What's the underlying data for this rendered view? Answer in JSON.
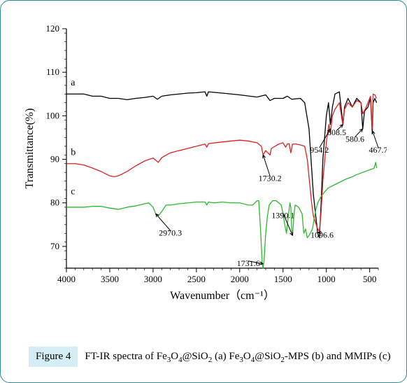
{
  "chart": {
    "type": "line",
    "background_color": "#ffffff",
    "axis_color": "#000000",
    "axis_width": 1.2,
    "font_family": "Times New Roman",
    "xlabel": "Wavenumber（cm⁻¹）",
    "ylabel": "Transmittance(%)",
    "label_fontsize": 16,
    "tick_fontsize": 13,
    "xlim": [
      4000,
      400
    ],
    "ylim": [
      65,
      120
    ],
    "xticks": [
      4000,
      3500,
      3000,
      2500,
      2000,
      1500,
      1000,
      500
    ],
    "yticks": [
      70,
      80,
      90,
      100,
      110,
      120
    ],
    "xtick_minor_step": 100,
    "ytick_minor_step": 2,
    "series": [
      {
        "key": "a",
        "label_letter": "a",
        "color": "#000000",
        "line_width": 1.3,
        "letter_xy": [
          3950,
          107
        ],
        "points": [
          [
            4000,
            105
          ],
          [
            3900,
            105
          ],
          [
            3800,
            105
          ],
          [
            3700,
            104.5
          ],
          [
            3600,
            104.5
          ],
          [
            3500,
            104
          ],
          [
            3400,
            104
          ],
          [
            3300,
            103.7
          ],
          [
            3200,
            104
          ],
          [
            3100,
            104.2
          ],
          [
            3000,
            104.5
          ],
          [
            2950,
            103.8
          ],
          [
            2900,
            104.5
          ],
          [
            2800,
            104.8
          ],
          [
            2700,
            105
          ],
          [
            2600,
            105.2
          ],
          [
            2500,
            105.3
          ],
          [
            2400,
            105.5
          ],
          [
            2380,
            104.5
          ],
          [
            2360,
            105.5
          ],
          [
            2200,
            105.2
          ],
          [
            2000,
            104.8
          ],
          [
            1800,
            104.3
          ],
          [
            1700,
            104.8
          ],
          [
            1650,
            103.5
          ],
          [
            1600,
            104
          ],
          [
            1500,
            104
          ],
          [
            1450,
            104.5
          ],
          [
            1400,
            103.8
          ],
          [
            1300,
            104
          ],
          [
            1250,
            103
          ],
          [
            1200,
            97
          ],
          [
            1150,
            82
          ],
          [
            1100,
            73
          ],
          [
            1080,
            72
          ],
          [
            1060,
            80
          ],
          [
            1040,
            90
          ],
          [
            1000,
            100
          ],
          [
            975,
            103
          ],
          [
            954,
            98
          ],
          [
            930,
            102
          ],
          [
            900,
            105
          ],
          [
            850,
            105.5
          ],
          [
            808,
            98
          ],
          [
            790,
            102
          ],
          [
            750,
            104
          ],
          [
            700,
            102
          ],
          [
            650,
            104
          ],
          [
            600,
            103
          ],
          [
            580,
            97
          ],
          [
            560,
            101
          ],
          [
            520,
            102
          ],
          [
            490,
            104
          ],
          [
            470,
            96
          ],
          [
            460,
            103
          ],
          [
            440,
            104
          ],
          [
            420,
            103
          ]
        ]
      },
      {
        "key": "b",
        "label_letter": "b",
        "color": "#e02020",
        "line_width": 1.3,
        "letter_xy": [
          3950,
          91
        ],
        "points": [
          [
            4000,
            89
          ],
          [
            3900,
            89
          ],
          [
            3800,
            88.7
          ],
          [
            3700,
            88
          ],
          [
            3600,
            87.2
          ],
          [
            3500,
            86.2
          ],
          [
            3450,
            86
          ],
          [
            3400,
            86.2
          ],
          [
            3300,
            87.2
          ],
          [
            3200,
            88.5
          ],
          [
            3100,
            89.6
          ],
          [
            3000,
            90.3
          ],
          [
            2970,
            89.8
          ],
          [
            2940,
            89.3
          ],
          [
            2900,
            90.4
          ],
          [
            2800,
            91.5
          ],
          [
            2700,
            92
          ],
          [
            2600,
            92.5
          ],
          [
            2500,
            93
          ],
          [
            2400,
            93.5
          ],
          [
            2380,
            92.8
          ],
          [
            2360,
            93.6
          ],
          [
            2200,
            94
          ],
          [
            2100,
            94.2
          ],
          [
            2000,
            94.4
          ],
          [
            1900,
            94.2
          ],
          [
            1800,
            93.8
          ],
          [
            1750,
            93
          ],
          [
            1730,
            91
          ],
          [
            1700,
            92
          ],
          [
            1650,
            91
          ],
          [
            1635,
            92.5
          ],
          [
            1550,
            93.5
          ],
          [
            1500,
            93.8
          ],
          [
            1470,
            92.8
          ],
          [
            1450,
            93.5
          ],
          [
            1430,
            93.6
          ],
          [
            1410,
            91.5
          ],
          [
            1390,
            93.5
          ],
          [
            1350,
            93.5
          ],
          [
            1300,
            93.3
          ],
          [
            1250,
            93
          ],
          [
            1220,
            90
          ],
          [
            1200,
            86
          ],
          [
            1170,
            80
          ],
          [
            1150,
            77
          ],
          [
            1100,
            74
          ],
          [
            1080,
            73.5
          ],
          [
            1060,
            78
          ],
          [
            1040,
            85
          ],
          [
            1000,
            94
          ],
          [
            970,
            98
          ],
          [
            954,
            96
          ],
          [
            930,
            100
          ],
          [
            900,
            101.5
          ],
          [
            850,
            103
          ],
          [
            810,
            98
          ],
          [
            790,
            101.5
          ],
          [
            750,
            103
          ],
          [
            700,
            102
          ],
          [
            650,
            103.5
          ],
          [
            600,
            103
          ],
          [
            580,
            100.5
          ],
          [
            550,
            101.5
          ],
          [
            520,
            103
          ],
          [
            490,
            104.5
          ],
          [
            470,
            97
          ],
          [
            460,
            105
          ],
          [
            440,
            104.8
          ],
          [
            420,
            104
          ]
        ]
      },
      {
        "key": "c",
        "label_letter": "c",
        "color": "#2db82d",
        "line_width": 1.3,
        "letter_xy": [
          3950,
          82
        ],
        "points": [
          [
            4000,
            79
          ],
          [
            3900,
            79
          ],
          [
            3800,
            79
          ],
          [
            3700,
            79.2
          ],
          [
            3600,
            79.2
          ],
          [
            3500,
            78.8
          ],
          [
            3400,
            78.5
          ],
          [
            3300,
            79
          ],
          [
            3200,
            79.3
          ],
          [
            3100,
            79.8
          ],
          [
            3050,
            80
          ],
          [
            3000,
            79
          ],
          [
            2970,
            77.5
          ],
          [
            2940,
            77
          ],
          [
            2900,
            78
          ],
          [
            2850,
            79.5
          ],
          [
            2800,
            79.5
          ],
          [
            2700,
            79.8
          ],
          [
            2600,
            80
          ],
          [
            2500,
            80.2
          ],
          [
            2400,
            80.2
          ],
          [
            2380,
            79.5
          ],
          [
            2360,
            80.2
          ],
          [
            2300,
            80
          ],
          [
            2200,
            80.2
          ],
          [
            2100,
            80
          ],
          [
            2000,
            80
          ],
          [
            1900,
            79.5
          ],
          [
            1850,
            79.5
          ],
          [
            1800,
            80.5
          ],
          [
            1780,
            80.5
          ],
          [
            1760,
            74
          ],
          [
            1740,
            66
          ],
          [
            1730,
            65
          ],
          [
            1720,
            66.5
          ],
          [
            1700,
            73
          ],
          [
            1680,
            77
          ],
          [
            1660,
            79.5
          ],
          [
            1640,
            80
          ],
          [
            1620,
            80.5
          ],
          [
            1580,
            80.5
          ],
          [
            1550,
            80
          ],
          [
            1520,
            79.5
          ],
          [
            1500,
            77.5
          ],
          [
            1480,
            75
          ],
          [
            1460,
            73
          ],
          [
            1440,
            77
          ],
          [
            1420,
            80
          ],
          [
            1410,
            79
          ],
          [
            1400,
            74
          ],
          [
            1390,
            72.5
          ],
          [
            1375,
            77
          ],
          [
            1360,
            79.5
          ],
          [
            1320,
            79
          ],
          [
            1280,
            77.5
          ],
          [
            1260,
            73
          ],
          [
            1240,
            74
          ],
          [
            1220,
            72
          ],
          [
            1200,
            72.5
          ],
          [
            1160,
            74
          ],
          [
            1140,
            76.5
          ],
          [
            1120,
            78.5
          ],
          [
            1100,
            80
          ],
          [
            1060,
            81.5
          ],
          [
            1020,
            82.5
          ],
          [
            980,
            83.4
          ],
          [
            940,
            83.8
          ],
          [
            900,
            84.2
          ],
          [
            860,
            84.6
          ],
          [
            820,
            85
          ],
          [
            780,
            85.4
          ],
          [
            740,
            85.7
          ],
          [
            700,
            86
          ],
          [
            660,
            86.4
          ],
          [
            620,
            86.7
          ],
          [
            580,
            87
          ],
          [
            540,
            87.3
          ],
          [
            500,
            87.6
          ],
          [
            470,
            87.8
          ],
          [
            450,
            87.9
          ],
          [
            430,
            89.3
          ],
          [
            420,
            88
          ]
        ]
      }
    ],
    "peak_labels": [
      {
        "text": "808.5",
        "tx": 880,
        "ty": 96,
        "ax": 808,
        "ay": 98
      },
      {
        "text": "954.2",
        "tx": 1080,
        "ty": 92,
        "ax": 954,
        "ay": 97
      },
      {
        "text": "580.6",
        "tx": 670,
        "ty": 94.5,
        "ax": 580,
        "ay": 97
      },
      {
        "text": "467.7",
        "tx": 400,
        "ty": 92,
        "ax": 467,
        "ay": 96.5
      },
      {
        "text": "1730.2",
        "tx": 1650,
        "ty": 85.5,
        "ax": 1730,
        "ay": 91
      },
      {
        "text": "2970.3",
        "tx": 2800,
        "ty": 73,
        "ax": 2970,
        "ay": 77.5
      },
      {
        "text": "1731.6",
        "tx": 1900,
        "ty": 66,
        "ax": 1730,
        "ay": 66
      },
      {
        "text": "1390.1",
        "tx": 1500,
        "ty": 77,
        "ax": 1390,
        "ay": 72.5
      },
      {
        "text": "1096.6",
        "tx": 1050,
        "ty": 72.5,
        "ax": 1096,
        "ay": 73.2
      }
    ],
    "caption": {
      "label": "Figure 4",
      "text_plain": "FT-IR spectra of Fe3O4@SiO2 (a) Fe3O4@SiO2-MPS (b) and MMIPs (c)",
      "text_html": "FT-IR spectra of Fe<sub>3</sub>O<sub>4</sub>@SiO<sub>2</sub> (a) Fe<sub>3</sub>O<sub>4</sub>@SiO<sub>2</sub>-MPS (b) and MMIPs (c)"
    }
  },
  "colors": {
    "frame_border": "#2a8a99",
    "caption_bg": "#d4eef4"
  }
}
